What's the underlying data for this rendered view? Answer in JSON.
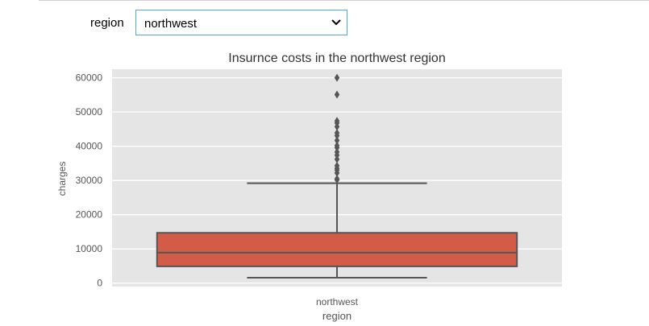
{
  "widget": {
    "label": "region",
    "selected": "northwest",
    "chevron_icon": "chevron-down-icon"
  },
  "chart_data": {
    "type": "box",
    "title": "Insurnce costs in the northwest region",
    "xlabel": "region",
    "ylabel": "charges",
    "categories": [
      "northwest"
    ],
    "ylim": [
      -1000,
      62500
    ],
    "yticks": [
      0,
      10000,
      20000,
      30000,
      40000,
      50000,
      60000
    ],
    "grid": true,
    "style": {
      "face": "#e5e5e5",
      "box_fill": "#d25c47",
      "line": "#555555",
      "grid": "#ffffff"
    },
    "boxes": [
      {
        "category": "northwest",
        "whisker_low": 1600,
        "q1": 4900,
        "median": 8900,
        "q3": 14700,
        "whisker_high": 29200,
        "outliers": [
          30200,
          30500,
          32200,
          33000,
          33500,
          34300,
          36200,
          37400,
          38300,
          39600,
          40200,
          41700,
          43100,
          43900,
          45700,
          46800,
          47400,
          55100,
          60000
        ]
      }
    ]
  }
}
